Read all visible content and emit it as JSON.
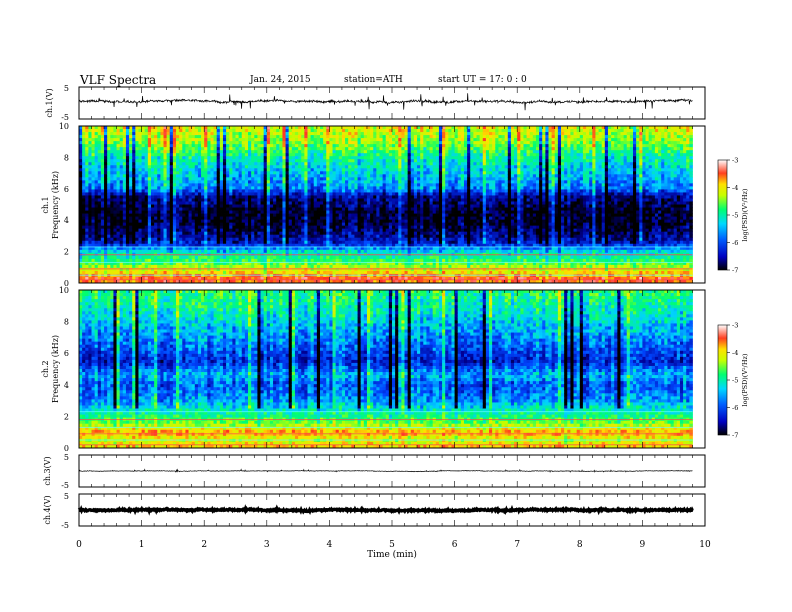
{
  "header": {
    "title": "VLF  Spectra",
    "date": "Jan.  24,  2015",
    "station": "station=ATH",
    "start_time": "start  UT  =   17: 0  : 0"
  },
  "colors": {
    "waveform": "#000000",
    "axes": "#000000",
    "colormap": [
      "#000010",
      "#0000a0",
      "#0050ff",
      "#00c8ff",
      "#00ff80",
      "#a8ff00",
      "#ffff00",
      "#ff9000",
      "#ff2020",
      "#ffffff"
    ]
  },
  "chart_data": [
    {
      "type": "line",
      "panel": "ch1_waveform",
      "ylabel": "ch.1(V)",
      "yticks": [
        "5",
        "-5"
      ],
      "ylim": [
        -5,
        5
      ],
      "xlim": [
        0,
        10
      ],
      "data_xmax": 9.8,
      "baseline_v": 0.5,
      "noise_amplitude_v": 0.6,
      "spike_amplitude_v": 2.5
    },
    {
      "type": "heatmap",
      "panel": "ch1_spectrogram",
      "ylabel": "ch.1\nFrequency  (kHz)",
      "ylabel_channel": "ch.1",
      "ylabel_freq": "Frequency  (kHz)",
      "yticks": [
        "0",
        "2",
        "4",
        "6",
        "8",
        "10"
      ],
      "ylim": [
        0,
        10
      ],
      "xlim": [
        0,
        10
      ],
      "data_xmax": 9.8,
      "colorbar": {
        "label": "log(PSD)(V²/Hz)",
        "ticks": [
          "-3",
          "-4",
          "-5",
          "-6",
          "-7"
        ],
        "range": [
          -7,
          -3
        ]
      },
      "profile_khz": [
        [
          0,
          -3.8
        ],
        [
          0.3,
          -3.6
        ],
        [
          0.8,
          -4.3
        ],
        [
          1.5,
          -5.0
        ],
        [
          2.0,
          -5.4
        ],
        [
          2.5,
          -6.3
        ],
        [
          3.0,
          -6.6
        ],
        [
          3.8,
          -6.9
        ],
        [
          4.5,
          -6.9
        ],
        [
          5.5,
          -6.6
        ],
        [
          6.0,
          -5.8
        ],
        [
          7.0,
          -5.5
        ],
        [
          8.0,
          -5.2
        ],
        [
          9.0,
          -4.6
        ],
        [
          10.0,
          -4.3
        ]
      ]
    },
    {
      "type": "heatmap",
      "panel": "ch2_spectrogram",
      "ylabel": "ch.2\nFrequency  (kHz)",
      "ylabel_channel": "ch.2",
      "ylabel_freq": "Frequency  (kHz)",
      "yticks": [
        "0",
        "2",
        "4",
        "6",
        "8",
        "10"
      ],
      "ylim": [
        0,
        10
      ],
      "xlim": [
        0,
        10
      ],
      "data_xmax": 9.8,
      "colorbar": {
        "label": "log(PSD)(V²/Hz)",
        "ticks": [
          "-3",
          "-4",
          "-5",
          "-6",
          "-7"
        ],
        "range": [
          -7,
          -3
        ]
      },
      "profile_khz": [
        [
          0,
          -4.0
        ],
        [
          0.5,
          -4.4
        ],
        [
          1.0,
          -3.9
        ],
        [
          1.5,
          -4.6
        ],
        [
          2.0,
          -5.0
        ],
        [
          3.0,
          -5.7
        ],
        [
          4.0,
          -6.0
        ],
        [
          4.6,
          -5.6
        ],
        [
          5.5,
          -6.3
        ],
        [
          6.5,
          -5.9
        ],
        [
          7.5,
          -5.6
        ],
        [
          8.5,
          -5.3
        ],
        [
          10.0,
          -5.0
        ]
      ]
    },
    {
      "type": "line",
      "panel": "ch3_waveform",
      "ylabel": "ch.3(V)",
      "yticks": [
        "5",
        "-5"
      ],
      "ylim": [
        -5,
        5
      ],
      "xlim": [
        0,
        10
      ],
      "data_xmax": 9.8,
      "baseline_v": 0,
      "noise_amplitude_v": 0.15,
      "spike_amplitude_v": 0.4
    },
    {
      "type": "line",
      "panel": "ch4_waveform",
      "ylabel": "ch.4(V)",
      "yticks": [
        "5",
        "-5"
      ],
      "ylim": [
        -5,
        5
      ],
      "xlim": [
        0,
        10
      ],
      "data_xmax": 9.8,
      "baseline_v": 0,
      "noise_amplitude_v": 0.35,
      "spike_amplitude_v": 0.35
    }
  ],
  "xaxis": {
    "label": "Time  (min)",
    "ticks": [
      "0",
      "1",
      "2",
      "3",
      "4",
      "5",
      "6",
      "7",
      "8",
      "9",
      "10"
    ],
    "range": [
      0,
      10
    ]
  }
}
